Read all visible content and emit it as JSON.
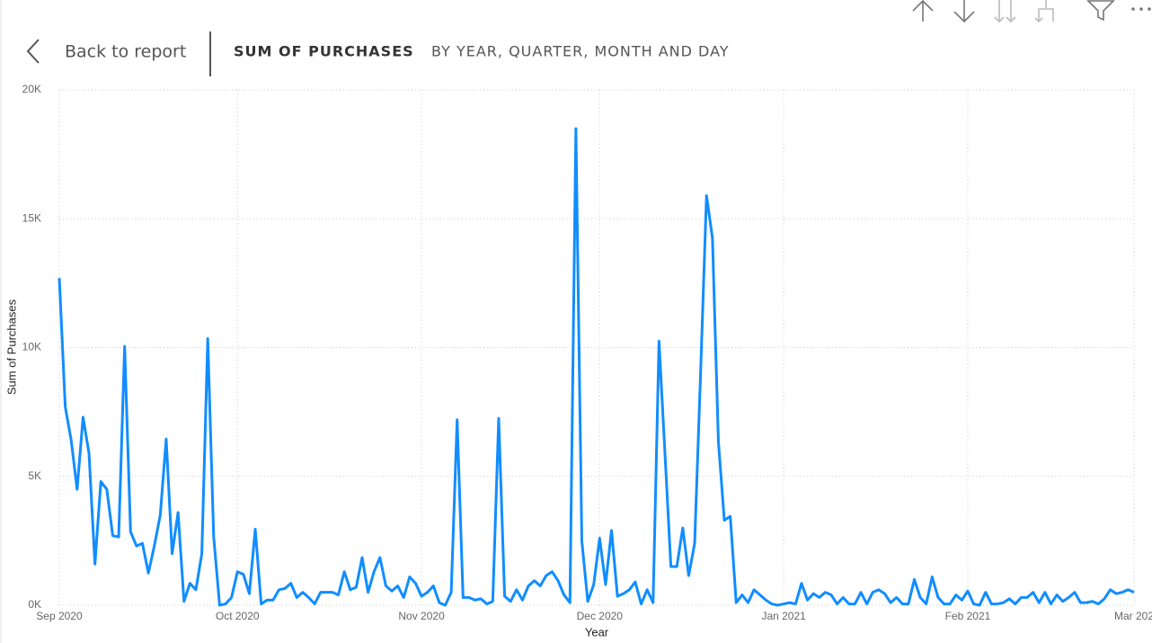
{
  "header": {
    "back": "Back to report",
    "title": "SUM OF PURCHASES",
    "subtitle": "BY YEAR, QUARTER, MONTH AND DAY"
  },
  "chart_data": {
    "type": "line",
    "x_label": "Year",
    "y_label": "Sum of Purchases",
    "categories": [
      "Sep 2020",
      null,
      null,
      null,
      null,
      null,
      null,
      null,
      null,
      null,
      null,
      null,
      null,
      null,
      null,
      null,
      null,
      null,
      null,
      null,
      null,
      null,
      null,
      null,
      null,
      null,
      null,
      null,
      null,
      null,
      "Oct 2020",
      null,
      null,
      null,
      null,
      null,
      null,
      null,
      null,
      null,
      null,
      null,
      null,
      null,
      null,
      null,
      null,
      null,
      null,
      null,
      null,
      null,
      null,
      null,
      null,
      null,
      null,
      null,
      null,
      null,
      null,
      "Nov 2020",
      null,
      null,
      null,
      null,
      null,
      null,
      null,
      null,
      null,
      null,
      null,
      null,
      null,
      null,
      null,
      null,
      null,
      null,
      null,
      null,
      null,
      null,
      null,
      null,
      null,
      null,
      null,
      null,
      null,
      "Dec 2020",
      null,
      null,
      null,
      null,
      null,
      null,
      null,
      null,
      null,
      null,
      null,
      null,
      null,
      null,
      null,
      null,
      null,
      null,
      null,
      null,
      null,
      null,
      null,
      null,
      null,
      null,
      null,
      null,
      null,
      null,
      "Jan 2021",
      null,
      null,
      null,
      null,
      null,
      null,
      null,
      null,
      null,
      null,
      null,
      null,
      null,
      null,
      null,
      null,
      null,
      null,
      null,
      null,
      null,
      null,
      null,
      null,
      null,
      null,
      null,
      null,
      null,
      null,
      "Feb 2021",
      null,
      null,
      null,
      null,
      null,
      null,
      null,
      null,
      null,
      null,
      null,
      null,
      null,
      null,
      null,
      null,
      null,
      null,
      null,
      null,
      null,
      null,
      null,
      null,
      null,
      null,
      null,
      "Mar 202"
    ],
    "series": [
      {
        "name": "Sum of Purchases",
        "color": "#118dff",
        "values": [
          12700,
          7700,
          6400,
          4500,
          7300,
          5900,
          1600,
          4800,
          4500,
          2700,
          2650,
          10050,
          2850,
          2300,
          2400,
          1250,
          2300,
          3500,
          6450,
          2000,
          3600,
          150,
          850,
          600,
          2000,
          10350,
          2650,
          0,
          50,
          300,
          1300,
          1200,
          450,
          2950,
          50,
          200,
          200,
          600,
          650,
          850,
          300,
          500,
          300,
          50,
          500,
          500,
          500,
          400,
          1300,
          600,
          700,
          1850,
          500,
          1300,
          1850,
          750,
          550,
          750,
          300,
          1100,
          850,
          350,
          500,
          750,
          100,
          0,
          500,
          7200,
          300,
          300,
          200,
          250,
          50,
          150,
          7250,
          350,
          150,
          600,
          200,
          750,
          950,
          750,
          1150,
          1300,
          950,
          400,
          100,
          18500,
          2500,
          150,
          800,
          2600,
          800,
          2900,
          350,
          450,
          600,
          900,
          50,
          600,
          100,
          10250,
          5900,
          1500,
          1500,
          3000,
          1150,
          2400,
          9000,
          15900,
          14250,
          6350,
          3300,
          3450,
          100,
          400,
          100,
          600,
          400,
          200,
          50,
          0,
          50,
          100,
          50,
          850,
          200,
          450,
          300,
          500,
          400,
          50,
          300,
          50,
          50,
          500,
          50,
          500,
          600,
          450,
          100,
          300,
          50,
          50,
          1000,
          300,
          50,
          1100,
          300,
          50,
          50,
          400,
          200,
          550,
          50,
          0,
          500,
          50,
          50,
          100,
          250,
          50,
          300,
          300,
          500,
          100,
          500,
          50,
          400,
          150,
          300,
          500,
          100,
          100,
          150,
          50,
          250,
          600,
          450,
          500,
          600,
          500
        ]
      }
    ],
    "ylim": [
      0,
      20000
    ],
    "yticks": [
      {
        "value": 0,
        "label": "0K"
      },
      {
        "value": 5000,
        "label": "5K"
      },
      {
        "value": 10000,
        "label": "10K"
      },
      {
        "value": 15000,
        "label": "15K"
      },
      {
        "value": 20000,
        "label": "20K"
      }
    ],
    "grid": true
  }
}
